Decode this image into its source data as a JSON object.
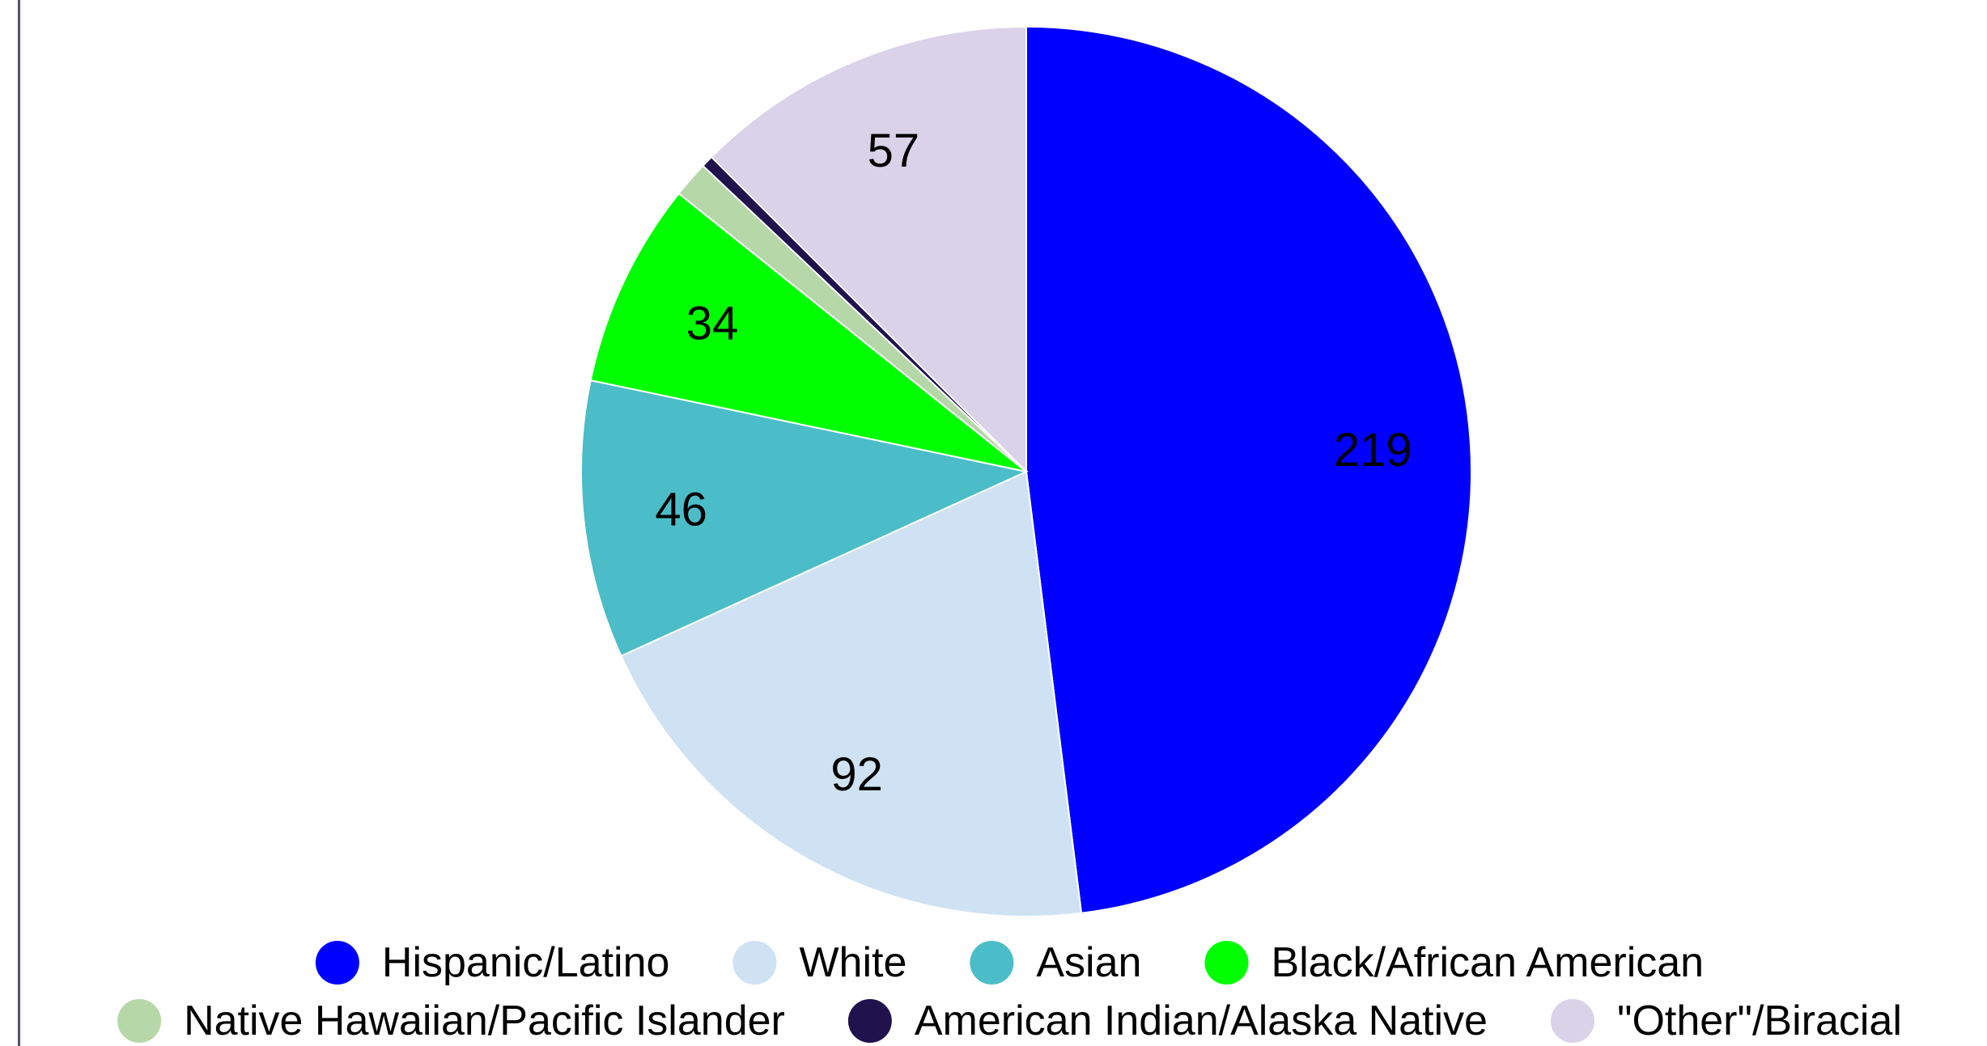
{
  "chart_data": {
    "type": "pie",
    "title": "",
    "slices": [
      {
        "label": "Hispanic/Latino",
        "value": 219,
        "color": "#0000ff",
        "show_label": true
      },
      {
        "label": "White",
        "value": 92,
        "color": "#cfe2f3",
        "show_label": true
      },
      {
        "label": "Asian",
        "value": 46,
        "color": "#4bbdc8",
        "show_label": true
      },
      {
        "label": "Black/African American",
        "value": 34,
        "color": "#00ff00",
        "show_label": true
      },
      {
        "label": "Native Hawaiian/Pacific Islander",
        "value": 6,
        "color": "#b6d7a8",
        "show_label": false
      },
      {
        "label": "American Indian/Alaska Native",
        "value": 2,
        "color": "#20124d",
        "show_label": false
      },
      {
        "label": "\"Other\"/Biracial",
        "value": 57,
        "color": "#d9d2e9",
        "show_label": true
      }
    ],
    "legend_position": "bottom",
    "start_angle": "top (12 o'clock), clockwise"
  }
}
